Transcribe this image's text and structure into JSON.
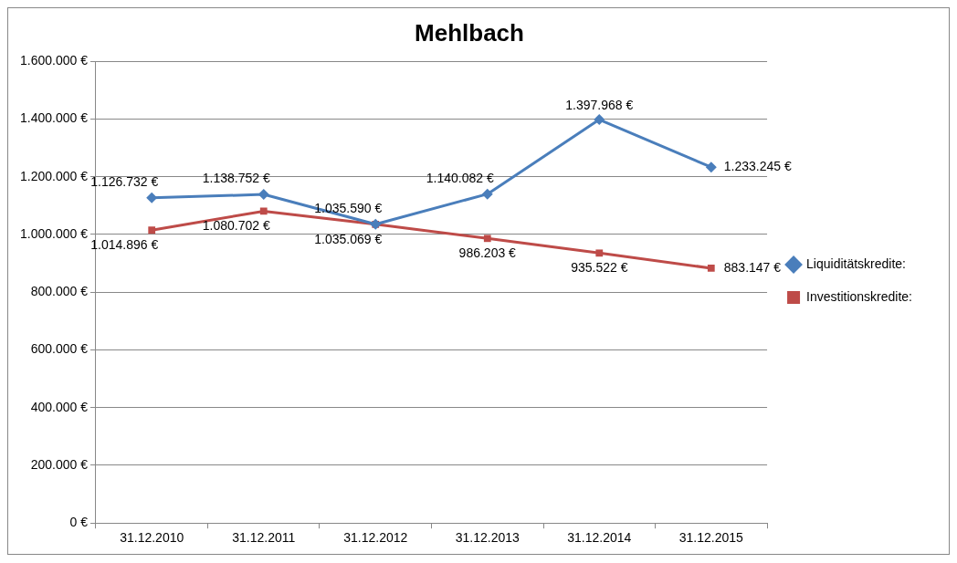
{
  "chart_data": {
    "type": "line",
    "title": "Mehlbach",
    "categories": [
      "31.12.2010",
      "31.12.2011",
      "31.12.2012",
      "31.12.2013",
      "31.12.2014",
      "31.12.2015"
    ],
    "series": [
      {
        "name": "Liquiditätskredite:",
        "color": "#4a7ebb",
        "marker": "diamond",
        "values": [
          1126732,
          1138752,
          1035590,
          1140082,
          1397968,
          1233245
        ],
        "value_labels": [
          "1.126.732 €",
          "1.138.752 €",
          "1.035.590 €",
          "1.140.082 €",
          "1.397.968 €",
          "1.233.245 €"
        ]
      },
      {
        "name": "Investitionskredite:",
        "color": "#be4b48",
        "marker": "square",
        "values": [
          1014896,
          1080702,
          1035069,
          986203,
          935522,
          883147
        ],
        "value_labels": [
          "1.014.896 €",
          "1.080.702 €",
          "1.035.069 €",
          "986.203 €",
          "935.522 €",
          "883.147 €"
        ]
      }
    ],
    "ylim": [
      0,
      1600000
    ],
    "yticks": [
      {
        "value": 0,
        "label": "0 €"
      },
      {
        "value": 200000,
        "label": "200.000 €"
      },
      {
        "value": 400000,
        "label": "400.000 €"
      },
      {
        "value": 600000,
        "label": "600.000 €"
      },
      {
        "value": 800000,
        "label": "800.000 €"
      },
      {
        "value": 1000000,
        "label": "1.000.000 €"
      },
      {
        "value": 1200000,
        "label": "1.200.000 €"
      },
      {
        "value": 1400000,
        "label": "1.400.000 €"
      },
      {
        "value": 1600000,
        "label": "1.600.000 €"
      }
    ],
    "grid": "y",
    "legend": "right",
    "line_style": "solid"
  }
}
